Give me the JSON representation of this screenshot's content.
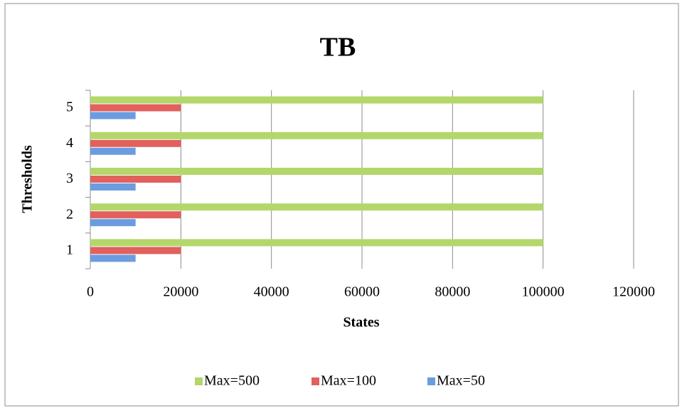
{
  "chart_data": {
    "type": "bar",
    "orientation": "horizontal",
    "title": "TB",
    "x_label": "States",
    "y_label": "Thresholds",
    "categories": [
      "1",
      "2",
      "3",
      "4",
      "5"
    ],
    "series": [
      {
        "name": "Max=500",
        "color": "#b3d76a",
        "values": [
          100000,
          100000,
          100000,
          100000,
          100000
        ]
      },
      {
        "name": "Max=100",
        "color": "#e2605d",
        "values": [
          20000,
          20000,
          20000,
          20000,
          20000
        ]
      },
      {
        "name": "Max=50",
        "color": "#6b9ce0",
        "values": [
          10000,
          10000,
          10000,
          10000,
          10000
        ]
      }
    ],
    "xlim": [
      0,
      120000
    ],
    "xticks": [
      0,
      20000,
      40000,
      60000,
      80000,
      100000,
      120000
    ],
    "grid": true,
    "legend": "bottom"
  }
}
